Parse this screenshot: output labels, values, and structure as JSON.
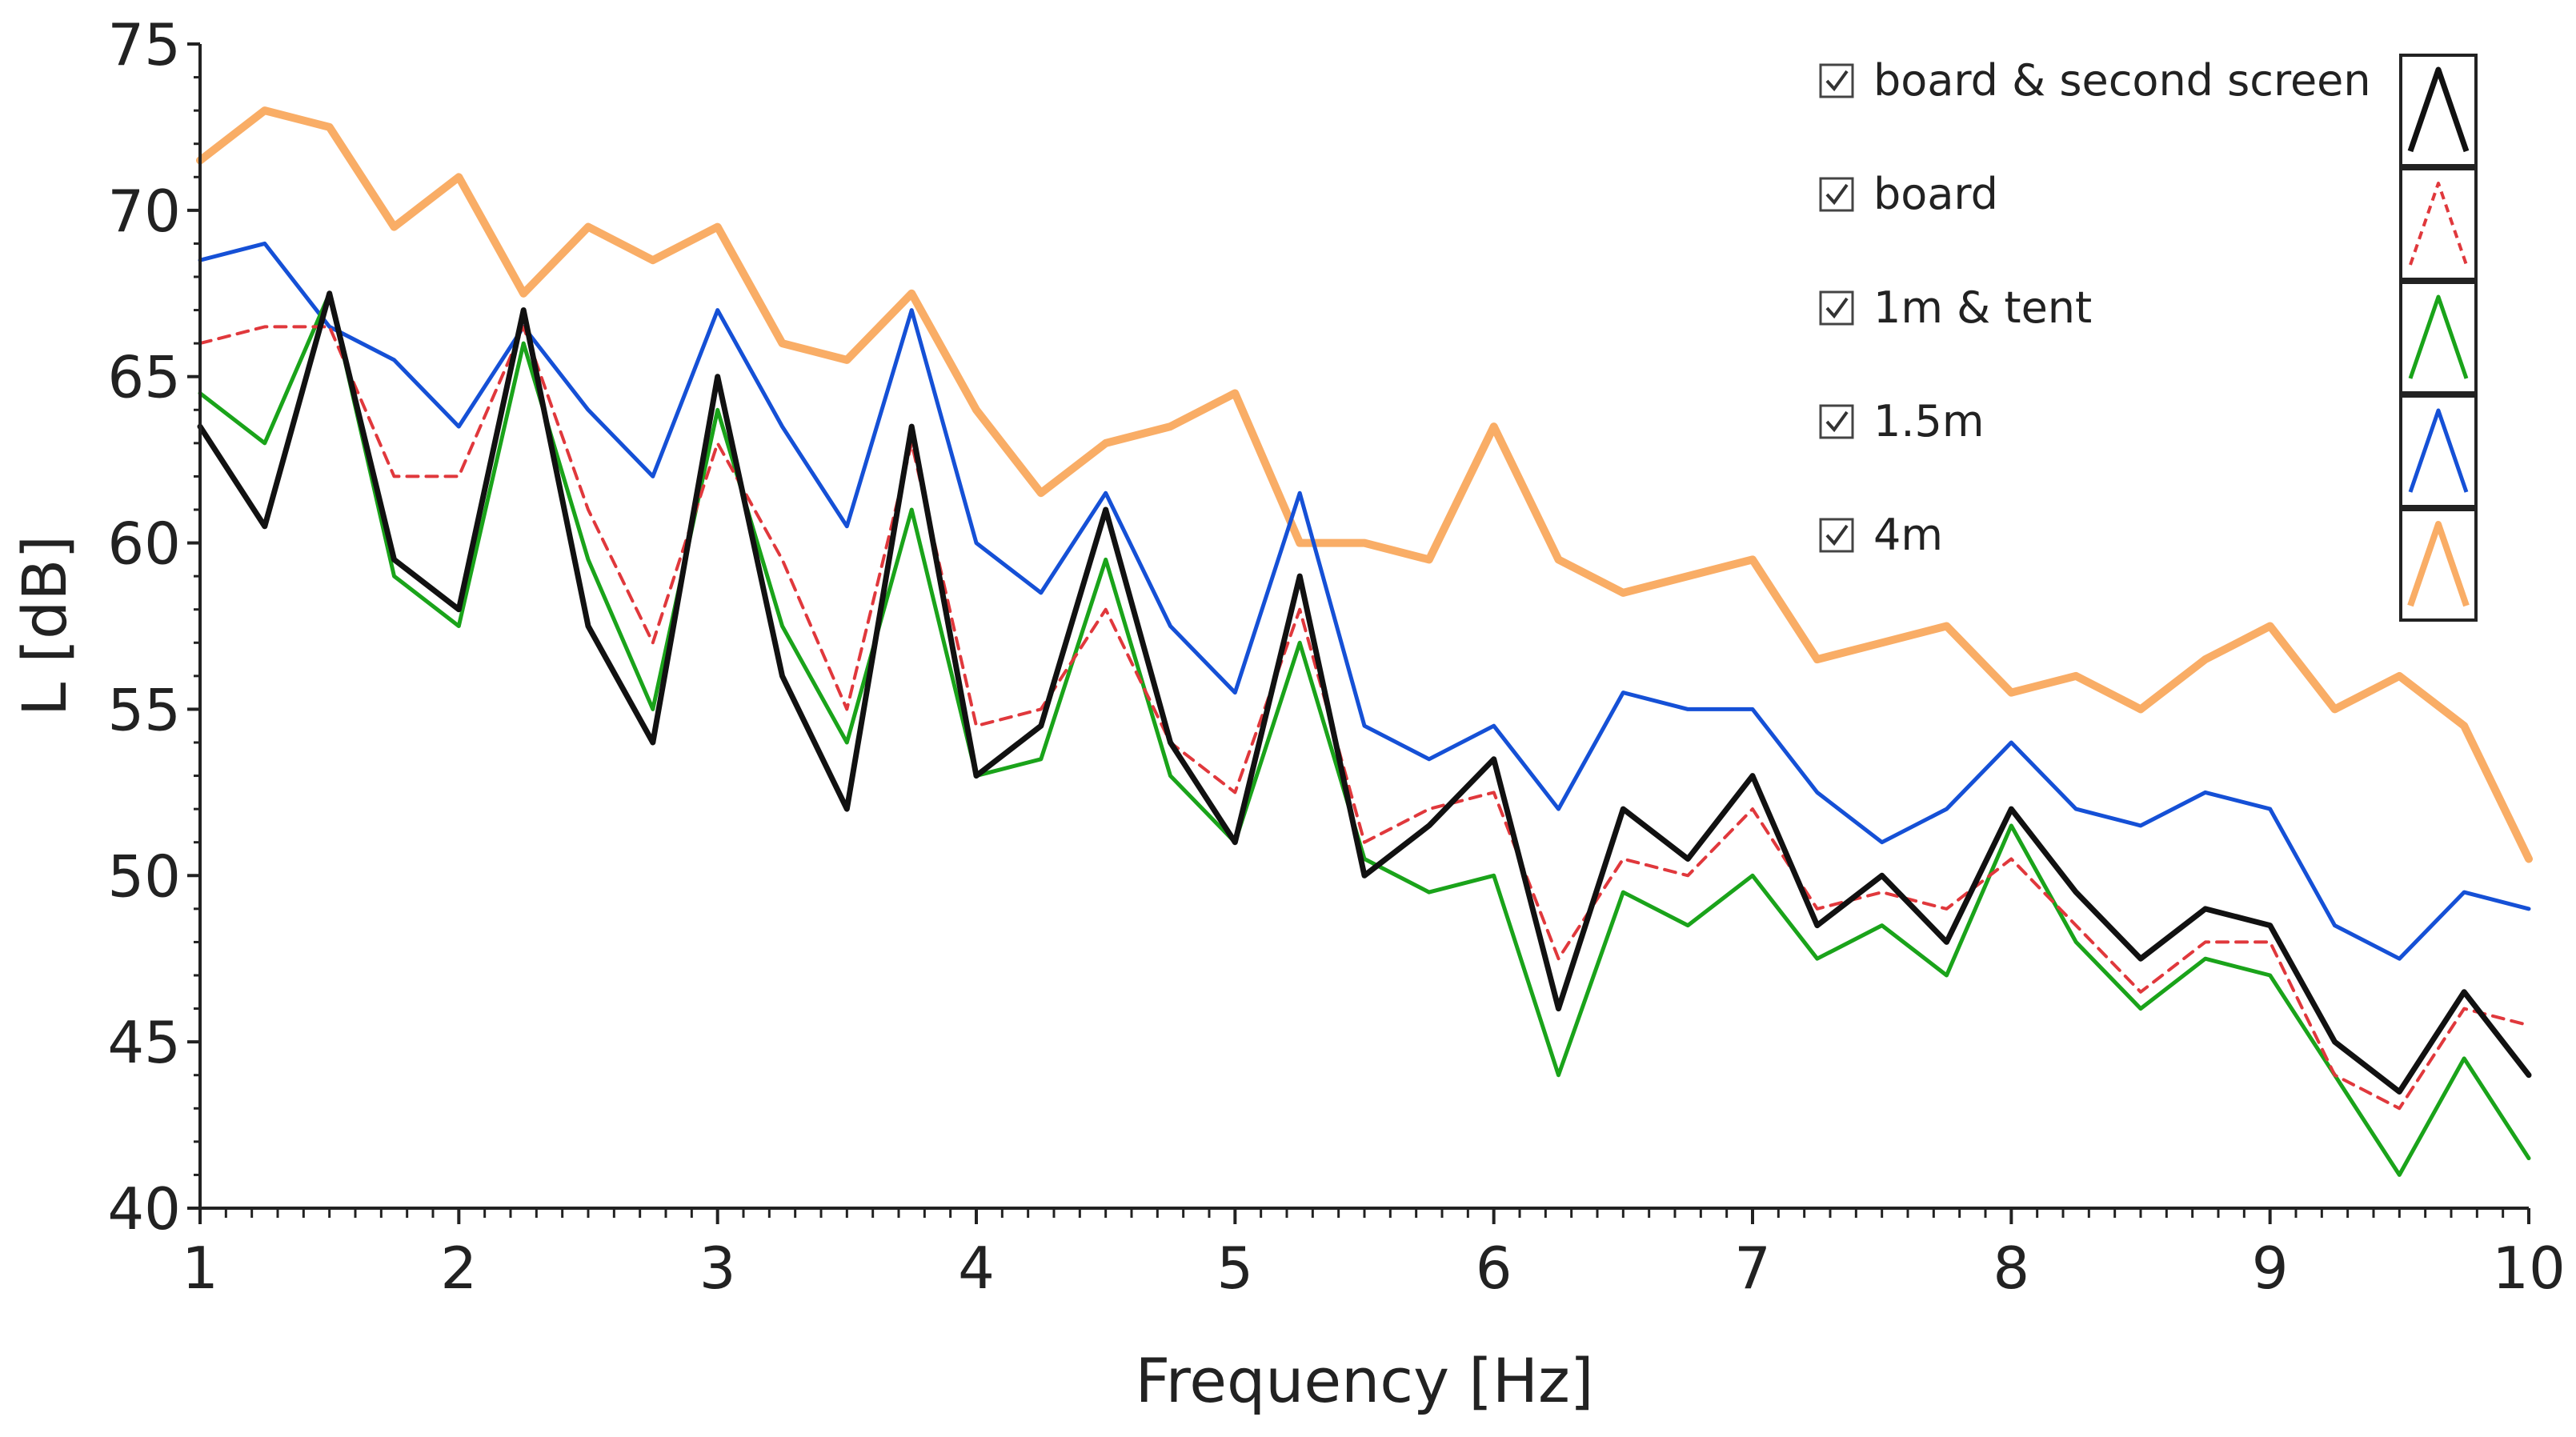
{
  "chart_data": {
    "type": "line",
    "title": "",
    "xlabel": "Frequency [Hz]",
    "ylabel": "L [dB]",
    "xlim": [
      1,
      10
    ],
    "ylim": [
      40,
      75
    ],
    "xticks": [
      "1",
      "2",
      "3",
      "4",
      "5",
      "6",
      "7",
      "8",
      "9",
      "10"
    ],
    "yticks": [
      "40",
      "45",
      "50",
      "55",
      "60",
      "65",
      "70",
      "75"
    ],
    "legend_position": "top-right",
    "x": [
      1.0,
      1.25,
      1.5,
      1.75,
      2.0,
      2.25,
      2.5,
      2.75,
      3.0,
      3.25,
      3.5,
      3.75,
      4.0,
      4.25,
      4.5,
      4.75,
      5.0,
      5.25,
      5.5,
      5.75,
      6.0,
      6.25,
      6.5,
      6.75,
      7.0,
      7.25,
      7.5,
      7.75,
      8.0,
      8.25,
      8.5,
      8.75,
      9.0,
      9.25,
      9.5,
      9.75,
      10.0
    ],
    "series": [
      {
        "name": "board & second screen",
        "color": "#111111",
        "style": "solid",
        "checked": true,
        "values": [
          63.5,
          60.5,
          67.5,
          59.5,
          58.0,
          67.0,
          57.5,
          54.0,
          65.0,
          56.0,
          52.0,
          63.5,
          53.0,
          54.5,
          61.0,
          54.0,
          51.0,
          59.0,
          50.0,
          51.5,
          53.5,
          46.0,
          52.0,
          50.5,
          53.0,
          48.5,
          50.0,
          48.0,
          52.0,
          49.5,
          47.5,
          49.0,
          48.5,
          45.0,
          43.5,
          46.5,
          44.0
        ]
      },
      {
        "name": "board",
        "color": "#e0383c",
        "style": "dashed",
        "checked": true,
        "values": [
          66.0,
          66.5,
          66.5,
          62.0,
          62.0,
          66.5,
          61.0,
          57.0,
          63.0,
          59.5,
          55.0,
          63.0,
          54.5,
          55.0,
          58.0,
          54.0,
          52.5,
          58.0,
          51.0,
          52.0,
          52.5,
          47.5,
          50.5,
          50.0,
          52.0,
          49.0,
          49.5,
          49.0,
          50.5,
          48.5,
          46.5,
          48.0,
          48.0,
          44.0,
          43.0,
          46.0,
          45.5
        ]
      },
      {
        "name": "1m & tent",
        "color": "#1aa31a",
        "style": "solid",
        "checked": true,
        "values": [
          64.5,
          63.0,
          67.5,
          59.0,
          57.5,
          66.0,
          59.5,
          55.0,
          64.0,
          57.5,
          54.0,
          61.0,
          53.0,
          53.5,
          59.5,
          53.0,
          51.0,
          57.0,
          50.5,
          49.5,
          50.0,
          44.0,
          49.5,
          48.5,
          50.0,
          47.5,
          48.5,
          47.0,
          51.5,
          48.0,
          46.0,
          47.5,
          47.0,
          44.0,
          41.0,
          44.5,
          41.5
        ]
      },
      {
        "name": "1.5m",
        "color": "#1550d6",
        "style": "solid",
        "checked": true,
        "values": [
          68.5,
          69.0,
          66.5,
          65.5,
          63.5,
          66.5,
          64.0,
          62.0,
          67.0,
          63.5,
          60.5,
          67.0,
          60.0,
          58.5,
          61.5,
          57.5,
          55.5,
          61.5,
          54.5,
          53.5,
          54.5,
          52.0,
          55.5,
          55.0,
          55.0,
          52.5,
          51.0,
          52.0,
          54.0,
          52.0,
          51.5,
          52.5,
          52.0,
          48.5,
          47.5,
          49.5,
          49.0
        ]
      },
      {
        "name": "4m",
        "color": "#f9ad66",
        "style": "solid",
        "checked": true,
        "values": [
          71.5,
          73.0,
          72.5,
          69.5,
          71.0,
          67.5,
          69.5,
          68.5,
          69.5,
          66.0,
          65.5,
          67.5,
          64.0,
          61.5,
          63.0,
          63.5,
          64.5,
          60.0,
          60.0,
          59.5,
          63.5,
          59.5,
          58.5,
          59.0,
          59.5,
          56.5,
          57.0,
          57.5,
          55.5,
          56.0,
          55.0,
          56.5,
          57.5,
          55.0,
          56.0,
          54.5,
          50.5
        ]
      }
    ]
  }
}
